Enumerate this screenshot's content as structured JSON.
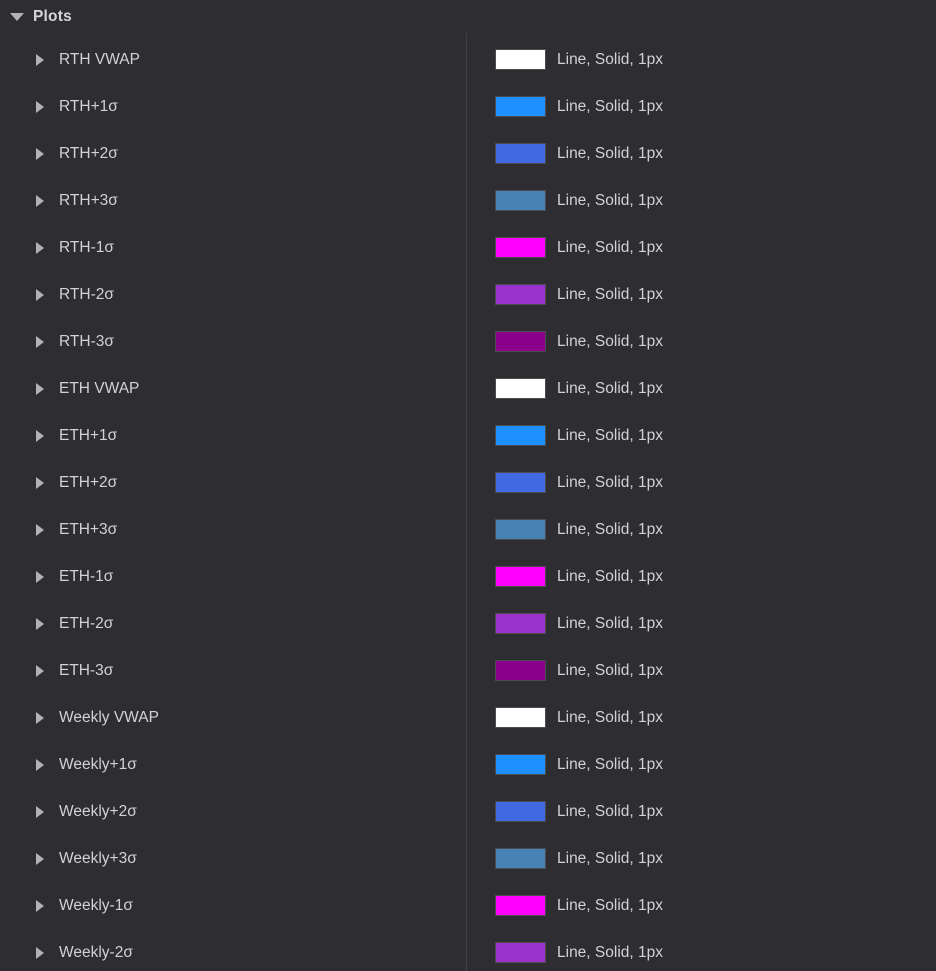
{
  "panel": {
    "header": {
      "label": "Plots"
    },
    "rows": [
      {
        "name": "RTH VWAP",
        "style": "Line, Solid, 1px",
        "color": "#ffffff"
      },
      {
        "name": "RTH+1σ",
        "style": "Line, Solid, 1px",
        "color": "#1e90ff"
      },
      {
        "name": "RTH+2σ",
        "style": "Line, Solid, 1px",
        "color": "#4169e1"
      },
      {
        "name": "RTH+3σ",
        "style": "Line, Solid, 1px",
        "color": "#4682b4"
      },
      {
        "name": "RTH-1σ",
        "style": "Line, Solid, 1px",
        "color": "#ff00ff"
      },
      {
        "name": "RTH-2σ",
        "style": "Line, Solid, 1px",
        "color": "#9932cc"
      },
      {
        "name": "RTH-3σ",
        "style": "Line, Solid, 1px",
        "color": "#8b008b"
      },
      {
        "name": "ETH VWAP",
        "style": "Line, Solid, 1px",
        "color": "#ffffff"
      },
      {
        "name": "ETH+1σ",
        "style": "Line, Solid, 1px",
        "color": "#1e90ff"
      },
      {
        "name": "ETH+2σ",
        "style": "Line, Solid, 1px",
        "color": "#4169e1"
      },
      {
        "name": "ETH+3σ",
        "style": "Line, Solid, 1px",
        "color": "#4682b4"
      },
      {
        "name": "ETH-1σ",
        "style": "Line, Solid, 1px",
        "color": "#ff00ff"
      },
      {
        "name": "ETH-2σ",
        "style": "Line, Solid, 1px",
        "color": "#9932cc"
      },
      {
        "name": "ETH-3σ",
        "style": "Line, Solid, 1px",
        "color": "#8b008b"
      },
      {
        "name": "Weekly VWAP",
        "style": "Line, Solid, 1px",
        "color": "#ffffff"
      },
      {
        "name": "Weekly+1σ",
        "style": "Line, Solid, 1px",
        "color": "#1e90ff"
      },
      {
        "name": "Weekly+2σ",
        "style": "Line, Solid, 1px",
        "color": "#4169e1"
      },
      {
        "name": "Weekly+3σ",
        "style": "Line, Solid, 1px",
        "color": "#4682b4"
      },
      {
        "name": "Weekly-1σ",
        "style": "Line, Solid, 1px",
        "color": "#ff00ff"
      },
      {
        "name": "Weekly-2σ",
        "style": "Line, Solid, 1px",
        "color": "#9932cc"
      }
    ],
    "theme": {
      "background": "#2e2e32",
      "text": "#d2d2d2",
      "divider": "#404044",
      "icon": "#b2b2b2",
      "swatch_border": "#4c4c50"
    }
  }
}
